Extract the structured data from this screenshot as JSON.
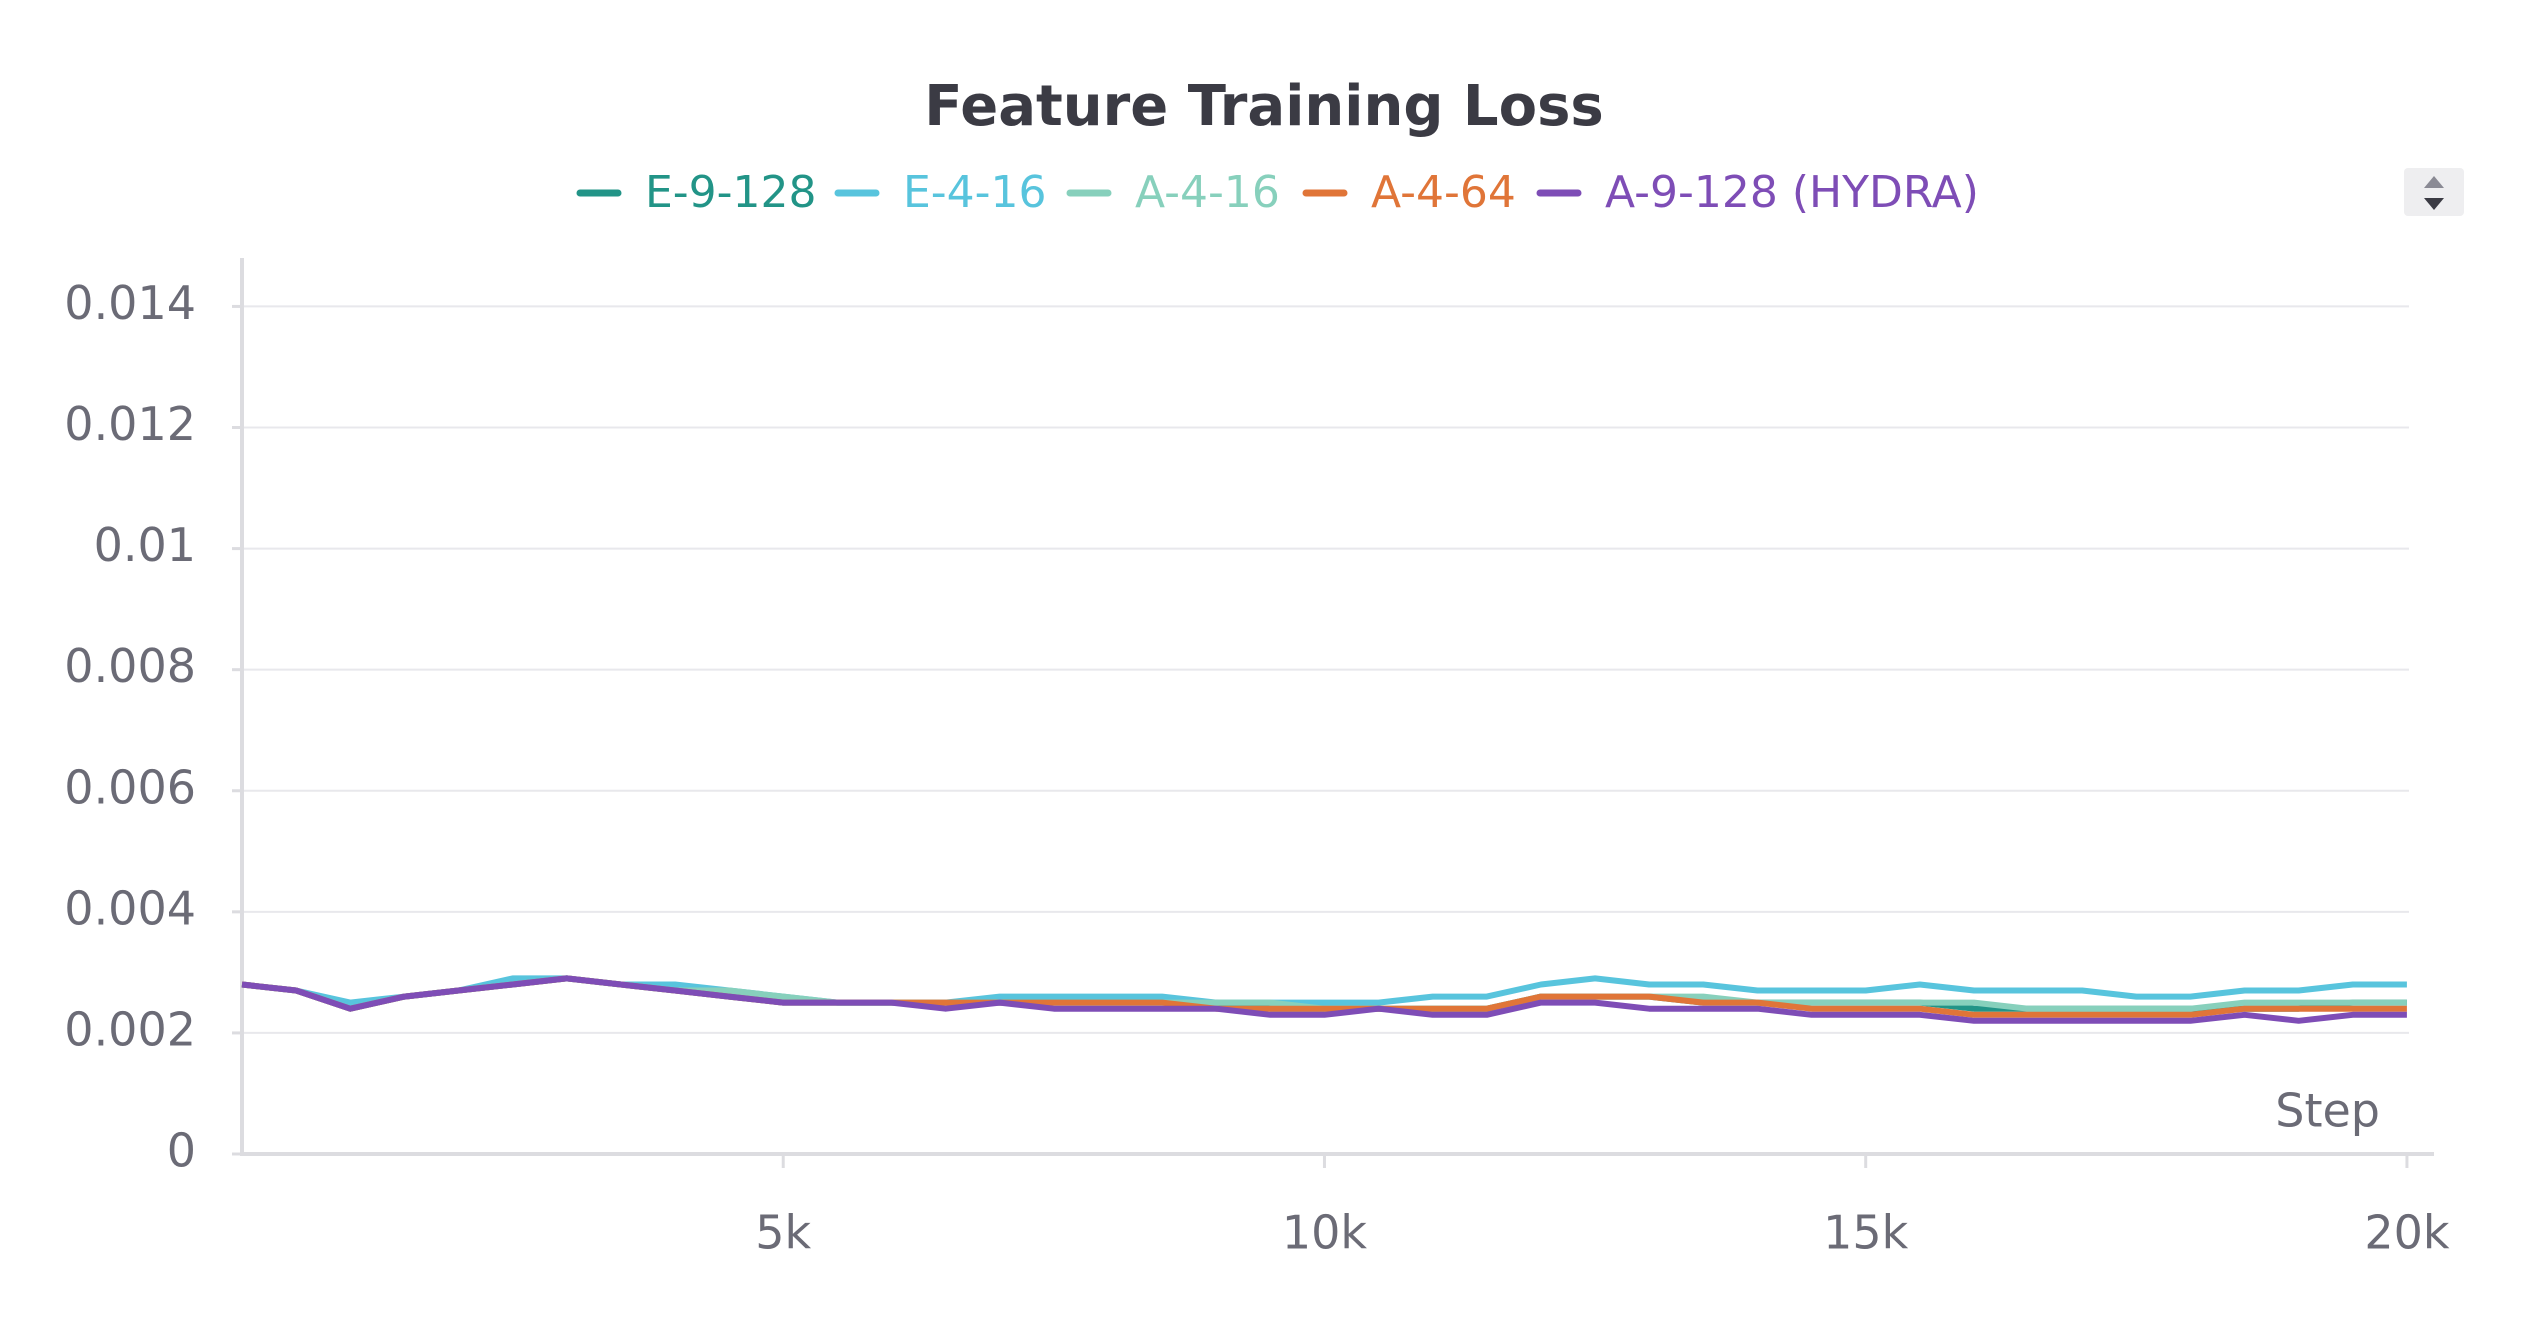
{
  "chart_data": {
    "type": "line",
    "title": "Feature Training Loss",
    "x_label": "Step",
    "x": [
      0,
      500,
      1000,
      1500,
      2000,
      2500,
      3000,
      3500,
      4000,
      4500,
      5000,
      5500,
      6000,
      6500,
      7000,
      7500,
      8000,
      8500,
      9000,
      9500,
      10000,
      10500,
      11000,
      11500,
      12000,
      12500,
      13000,
      13500,
      14000,
      14500,
      15000,
      15500,
      16000,
      16500,
      17000,
      17500,
      18000,
      18500,
      19000,
      19500,
      20000
    ],
    "series": [
      {
        "name": "E-9-128",
        "color": "#229487",
        "values": [
          0.0028,
          0.0027,
          0.0024,
          0.0026,
          0.0027,
          0.0028,
          0.0029,
          0.0028,
          0.0027,
          0.0026,
          0.0025,
          0.0025,
          0.0025,
          0.0025,
          0.0025,
          0.0025,
          0.0025,
          0.0025,
          0.0025,
          0.0024,
          0.0024,
          0.0024,
          0.0024,
          0.0024,
          0.0026,
          0.0026,
          0.0026,
          0.0025,
          0.0025,
          0.0025,
          0.0025,
          0.0025,
          0.0024,
          0.0024,
          0.0024,
          0.0024,
          0.0024,
          0.0024,
          0.0024,
          0.0025,
          0.0025
        ]
      },
      {
        "name": "E-4-16",
        "color": "#58c4dd",
        "values": [
          0.0028,
          0.0027,
          0.0025,
          0.0026,
          0.0027,
          0.0029,
          0.0029,
          0.0028,
          0.0028,
          0.0027,
          0.0026,
          0.0025,
          0.0025,
          0.0025,
          0.0026,
          0.0026,
          0.0026,
          0.0026,
          0.0025,
          0.0025,
          0.0025,
          0.0025,
          0.0026,
          0.0026,
          0.0028,
          0.0029,
          0.0028,
          0.0028,
          0.0027,
          0.0027,
          0.0027,
          0.0028,
          0.0027,
          0.0027,
          0.0027,
          0.0026,
          0.0026,
          0.0027,
          0.0027,
          0.0028,
          0.0028
        ]
      },
      {
        "name": "A-4-16",
        "color": "#87d0bc",
        "values": [
          0.0028,
          0.0027,
          0.0024,
          0.0026,
          0.0027,
          0.0028,
          0.0029,
          0.0028,
          0.0027,
          0.0027,
          0.0026,
          0.0025,
          0.0025,
          0.0025,
          0.0025,
          0.0025,
          0.0025,
          0.0025,
          0.0025,
          0.0025,
          0.0024,
          0.0024,
          0.0024,
          0.0024,
          0.0026,
          0.0026,
          0.0026,
          0.0026,
          0.0025,
          0.0025,
          0.0025,
          0.0025,
          0.0025,
          0.0024,
          0.0024,
          0.0024,
          0.0024,
          0.0025,
          0.0025,
          0.0025,
          0.0025
        ]
      },
      {
        "name": "A-4-64",
        "color": "#e07538",
        "values": [
          0.0028,
          0.0027,
          0.0024,
          0.0026,
          0.0027,
          0.0028,
          0.0029,
          0.0028,
          0.0027,
          0.0026,
          0.0025,
          0.0025,
          0.0025,
          0.0025,
          0.0025,
          0.0025,
          0.0025,
          0.0025,
          0.0024,
          0.0024,
          0.0024,
          0.0024,
          0.0024,
          0.0024,
          0.0026,
          0.0026,
          0.0026,
          0.0025,
          0.0025,
          0.0024,
          0.0024,
          0.0024,
          0.0023,
          0.0023,
          0.0023,
          0.0023,
          0.0023,
          0.0024,
          0.0024,
          0.0024,
          0.0024
        ]
      },
      {
        "name": "A-9-128 (HYDRA)",
        "color": "#7e4db6",
        "values": [
          0.0028,
          0.0027,
          0.0024,
          0.0026,
          0.0027,
          0.0028,
          0.0029,
          0.0028,
          0.0027,
          0.0026,
          0.0025,
          0.0025,
          0.0025,
          0.0024,
          0.0025,
          0.0024,
          0.0024,
          0.0024,
          0.0024,
          0.0023,
          0.0023,
          0.0024,
          0.0023,
          0.0023,
          0.0025,
          0.0025,
          0.0024,
          0.0024,
          0.0024,
          0.0023,
          0.0023,
          0.0023,
          0.0022,
          0.0022,
          0.0022,
          0.0022,
          0.0022,
          0.0023,
          0.0022,
          0.0023,
          0.0023
        ]
      }
    ],
    "xlim": [
      0,
      20250
    ],
    "ylim": [
      0,
      0.0148
    ],
    "xticks": [
      {
        "value": 5000,
        "label": "5k"
      },
      {
        "value": 10000,
        "label": "10k"
      },
      {
        "value": 15000,
        "label": "15k"
      },
      {
        "value": 20000,
        "label": "20k"
      }
    ],
    "yticks": [
      0,
      0.002,
      0.004,
      0.006,
      0.008,
      0.01,
      0.012,
      0.014
    ],
    "grid": true
  }
}
